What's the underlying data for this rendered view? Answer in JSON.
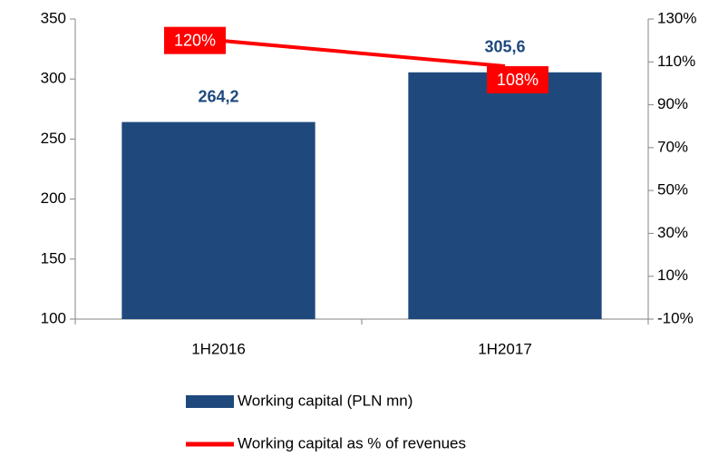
{
  "chart_data": {
    "type": "bar",
    "categories": [
      "1H2016",
      "1H2017"
    ],
    "series": [
      {
        "name": "Working capital (PLN mn)",
        "type": "bar",
        "color": "#1f497d",
        "values": [
          264.2,
          305.6
        ],
        "value_labels": [
          "264,2",
          "305,6"
        ]
      },
      {
        "name": "Working capital as % of revenues",
        "type": "line",
        "axis": "y2",
        "color": "#ff0000",
        "values": [
          120,
          108
        ],
        "value_labels": [
          "120%",
          "108%"
        ]
      }
    ],
    "ylim": [
      100,
      350
    ],
    "yticks": [
      100,
      150,
      200,
      250,
      300,
      350
    ],
    "y2lim": [
      -10,
      130
    ],
    "y2ticks": [
      {
        "value": -10,
        "label": "-10%"
      },
      {
        "value": 10,
        "label": "10%"
      },
      {
        "value": 30,
        "label": "30%"
      },
      {
        "value": 50,
        "label": "50%"
      },
      {
        "value": 70,
        "label": "70%"
      },
      {
        "value": 90,
        "label": "90%"
      },
      {
        "value": 110,
        "label": "110%"
      },
      {
        "value": 130,
        "label": "130%"
      }
    ],
    "legend": "bottom"
  }
}
